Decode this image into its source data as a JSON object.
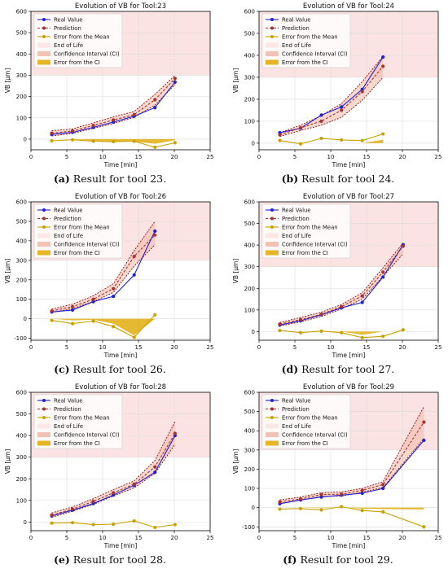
{
  "colors": {
    "real": "#1f1fd6",
    "prediction": "#a83232",
    "error_mean": "#c8a200",
    "eol_fill": "#fbe3e3",
    "ci_fill": "#f0b8a8",
    "ci_edge": "#8a1010",
    "error_ci": "#e0a800"
  },
  "legend": {
    "real": "Real Value",
    "prediction": "Prediction",
    "error_mean": "Error from the Mean",
    "eol": "End of Life",
    "ci": "Confidence Interval (CI)",
    "error_ci": "Error from the CI"
  },
  "chart_data": [
    {
      "type": "line",
      "title": "Evolution of VB for Tool:23",
      "caption_label": "(a)",
      "caption_text": "Result for tool 23.",
      "xlabel": "Time [min]",
      "ylabel": "VB [μm]",
      "xlim": [
        0,
        25
      ],
      "ylim": [
        -50,
        600
      ],
      "xticks": [
        0,
        5,
        10,
        15,
        20,
        25
      ],
      "yticks": [
        0,
        100,
        200,
        300,
        400,
        500,
        600
      ],
      "grid": true,
      "legend_position": "top-left",
      "end_of_life": [
        300,
        600
      ],
      "x": [
        2.9,
        5.8,
        8.7,
        11.5,
        14.4,
        17.3,
        20.1
      ],
      "series": [
        {
          "name": "Real Value",
          "values": [
            22,
            32,
            55,
            80,
            108,
            148,
            268
          ]
        },
        {
          "name": "Prediction",
          "values": [
            28,
            38,
            64,
            90,
            115,
            185,
            285
          ]
        },
        {
          "name": "Error from the Mean",
          "values": [
            -8,
            -3,
            -10,
            -12,
            -10,
            -38,
            -17
          ]
        }
      ],
      "ci_lower": [
        15,
        27,
        50,
        73,
        102,
        160,
        256
      ],
      "ci_upper": [
        40,
        48,
        76,
        104,
        130,
        210,
        300
      ],
      "error_ci": [
        0,
        0,
        -8,
        -10,
        -12,
        -22,
        -5
      ]
    },
    {
      "type": "line",
      "title": "Evolution of VB for Tool:24",
      "caption_label": "(b)",
      "caption_text": "Result for tool 24.",
      "xlabel": "Time [min]",
      "ylabel": "VB [μm]",
      "xlim": [
        0,
        25
      ],
      "ylim": [
        -30,
        600
      ],
      "xticks": [
        0,
        5,
        10,
        15,
        20,
        25
      ],
      "yticks": [
        0,
        100,
        200,
        300,
        400,
        500,
        600
      ],
      "grid": true,
      "legend_position": "top-left",
      "end_of_life": [
        300,
        600
      ],
      "x": [
        2.9,
        5.8,
        8.7,
        11.5,
        14.4,
        17.3
      ],
      "series": [
        {
          "name": "Real Value",
          "values": [
            48,
            68,
            128,
            165,
            245,
            392
          ]
        },
        {
          "name": "Prediction",
          "values": [
            38,
            70,
            100,
            150,
            235,
            350
          ]
        },
        {
          "name": "Error from the Mean",
          "values": [
            12,
            -3,
            22,
            15,
            12,
            42
          ]
        }
      ],
      "ci_lower": [
        30,
        58,
        82,
        118,
        195,
        300
      ],
      "ci_upper": [
        48,
        82,
        125,
        180,
        280,
        395
      ],
      "error_ci": [
        0,
        0,
        0,
        0,
        0,
        16
      ]
    },
    {
      "type": "line",
      "title": "Evolution of VB for Tool:26",
      "caption_label": "(c)",
      "caption_text": "Result for tool 26.",
      "xlabel": "Time [min]",
      "ylabel": "VB [μm]",
      "xlim": [
        0,
        25
      ],
      "ylim": [
        -110,
        600
      ],
      "xticks": [
        0,
        5,
        10,
        15,
        20,
        25
      ],
      "yticks": [
        -100,
        0,
        100,
        200,
        300,
        400,
        500,
        600
      ],
      "grid": true,
      "legend_position": "top-left",
      "end_of_life": [
        300,
        600
      ],
      "x": [
        2.9,
        5.8,
        8.7,
        11.5,
        14.4,
        17.3
      ],
      "series": [
        {
          "name": "Real Value",
          "values": [
            35,
            45,
            88,
            115,
            225,
            450
          ]
        },
        {
          "name": "Prediction",
          "values": [
            40,
            62,
            100,
            155,
            320,
            430
          ]
        },
        {
          "name": "Error from the Mean",
          "values": [
            -8,
            -25,
            -12,
            -40,
            -95,
            20
          ]
        }
      ],
      "ci_lower": [
        32,
        52,
        88,
        135,
        270,
        380
      ],
      "ci_upper": [
        50,
        75,
        118,
        180,
        350,
        500
      ],
      "error_ci": [
        0,
        -8,
        -5,
        -25,
        -85,
        0
      ]
    },
    {
      "type": "line",
      "title": "Evolution of VB for Tool:27",
      "caption_label": "(d)",
      "caption_text": "Result for tool 27.",
      "xlabel": "Time [min]",
      "ylabel": "VB [μm]",
      "xlim": [
        0,
        25
      ],
      "ylim": [
        -40,
        600
      ],
      "xticks": [
        0,
        5,
        10,
        15,
        20,
        25
      ],
      "yticks": [
        0,
        100,
        200,
        300,
        400,
        500,
        600
      ],
      "grid": true,
      "legend_position": "top-left",
      "end_of_life": [
        300,
        600
      ],
      "x": [
        2.9,
        5.8,
        8.7,
        11.5,
        14.4,
        17.3,
        20.1
      ],
      "series": [
        {
          "name": "Real Value",
          "values": [
            30,
            50,
            78,
            110,
            135,
            252,
            402
          ]
        },
        {
          "name": "Prediction",
          "values": [
            35,
            55,
            80,
            115,
            165,
            275,
            395
          ]
        },
        {
          "name": "Error from the Mean",
          "values": [
            5,
            -5,
            2,
            -5,
            -28,
            -22,
            8
          ]
        }
      ],
      "ci_lower": [
        25,
        45,
        70,
        105,
        150,
        255,
        360
      ],
      "ci_upper": [
        42,
        65,
        90,
        125,
        180,
        295,
        410
      ],
      "error_ci": [
        0,
        0,
        0,
        0,
        -15,
        0,
        0
      ]
    },
    {
      "type": "line",
      "title": "Evolution of VB for Tool:28",
      "caption_label": "(e)",
      "caption_text": "Result for tool 28.",
      "xlabel": "Time [min]",
      "ylabel": "VB [μm]",
      "xlim": [
        0,
        25
      ],
      "ylim": [
        -40,
        600
      ],
      "xticks": [
        0,
        5,
        10,
        15,
        20,
        25
      ],
      "yticks": [
        0,
        100,
        200,
        300,
        400,
        500,
        600
      ],
      "grid": true,
      "legend_position": "top-left",
      "end_of_life": [
        300,
        600
      ],
      "x": [
        2.9,
        5.8,
        8.7,
        11.5,
        14.4,
        17.3,
        20.1
      ],
      "series": [
        {
          "name": "Real Value",
          "values": [
            28,
            55,
            85,
            125,
            170,
            230,
            400
          ]
        },
        {
          "name": "Prediction",
          "values": [
            32,
            60,
            95,
            135,
            175,
            255,
            410
          ]
        },
        {
          "name": "Error from the Mean",
          "values": [
            -5,
            -3,
            -12,
            -10,
            5,
            -25,
            -12
          ]
        }
      ],
      "ci_lower": [
        22,
        50,
        82,
        120,
        158,
        225,
        360
      ],
      "ci_upper": [
        42,
        70,
        108,
        150,
        190,
        285,
        465
      ],
      "error_ci": [
        0,
        0,
        0,
        0,
        0,
        0,
        0
      ]
    },
    {
      "type": "line",
      "title": "Evolution of VB for Tool:29",
      "caption_label": "(f)",
      "caption_text": "Result for tool 29.",
      "xlabel": "Time [min]",
      "ylabel": "VB [μm]",
      "xlim": [
        0,
        25
      ],
      "ylim": [
        -120,
        600
      ],
      "xticks": [
        0,
        5,
        10,
        15,
        20,
        25
      ],
      "yticks": [
        -100,
        0,
        100,
        200,
        300,
        400,
        500,
        600
      ],
      "grid": true,
      "legend_position": "top-left",
      "end_of_life": [
        300,
        600
      ],
      "x": [
        2.9,
        5.8,
        8.7,
        11.5,
        14.4,
        17.3,
        23.0
      ],
      "series": [
        {
          "name": "Real Value",
          "values": [
            20,
            40,
            55,
            65,
            75,
            100,
            350
          ]
        },
        {
          "name": "Prediction",
          "values": [
            30,
            45,
            68,
            70,
            90,
            120,
            445
          ]
        },
        {
          "name": "Error from the Mean",
          "values": [
            -8,
            -5,
            -12,
            5,
            -15,
            -22,
            -100
          ]
        }
      ],
      "ci_lower": [
        22,
        38,
        58,
        60,
        80,
        105,
        360
      ],
      "ci_upper": [
        40,
        55,
        78,
        82,
        100,
        135,
        525
      ],
      "error_ci": [
        0,
        0,
        -3,
        0,
        -5,
        -8,
        -10
      ]
    }
  ]
}
